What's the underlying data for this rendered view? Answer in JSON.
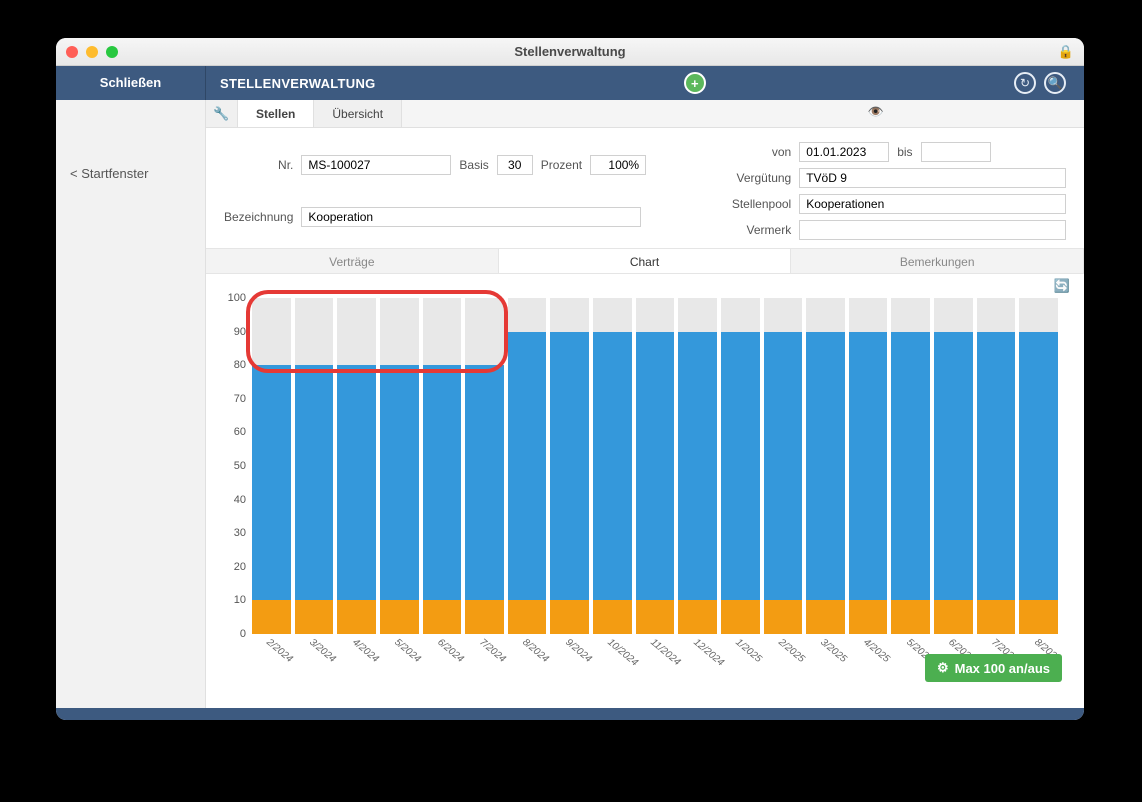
{
  "window": {
    "title": "Stellenverwaltung"
  },
  "topbar": {
    "close": "Schließen",
    "heading": "STELLENVERWALTUNG"
  },
  "sidebar": {
    "start": "< Startfenster"
  },
  "tabs": {
    "stellen": "Stellen",
    "uebersicht": "Übersicht"
  },
  "form": {
    "nr_label": "Nr.",
    "nr": "MS-100027",
    "basis_label": "Basis",
    "basis": "30",
    "prozent_label": "Prozent",
    "prozent": "100%",
    "bez_label": "Bezeichnung",
    "bez": "Kooperation",
    "von_label": "von",
    "von": "01.01.2023",
    "bis_label": "bis",
    "bis": "",
    "verguetung_label": "Vergütung",
    "verguetung": "TVöD 9",
    "pool_label": "Stellenpool",
    "pool": "Kooperationen",
    "vermerk_label": "Vermerk",
    "vermerk": ""
  },
  "subtabs": {
    "vertraege": "Verträge",
    "chart": "Chart",
    "bemerkungen": "Bemerkungen",
    "active": "chart"
  },
  "chart": {
    "type": "stacked-bar",
    "ylim": [
      0,
      100
    ],
    "ytick_step": 10,
    "yticks": [
      0,
      10,
      20,
      30,
      40,
      50,
      60,
      70,
      80,
      90,
      100
    ],
    "label_fontsize": 11,
    "colors": {
      "orange": "#f39c12",
      "blue": "#3498db",
      "background": "#e8e8e8"
    },
    "months": [
      {
        "label": "2/2024",
        "orange": 10,
        "blue": 70,
        "bg": 20
      },
      {
        "label": "3/2024",
        "orange": 10,
        "blue": 70,
        "bg": 20
      },
      {
        "label": "4/2024",
        "orange": 10,
        "blue": 70,
        "bg": 20
      },
      {
        "label": "5/2024",
        "orange": 10,
        "blue": 70,
        "bg": 20
      },
      {
        "label": "6/2024",
        "orange": 10,
        "blue": 70,
        "bg": 20
      },
      {
        "label": "7/2024",
        "orange": 10,
        "blue": 70,
        "bg": 20
      },
      {
        "label": "8/2024",
        "orange": 10,
        "blue": 80,
        "bg": 10
      },
      {
        "label": "9/2024",
        "orange": 10,
        "blue": 80,
        "bg": 10
      },
      {
        "label": "10/2024",
        "orange": 10,
        "blue": 80,
        "bg": 10
      },
      {
        "label": "11/2024",
        "orange": 10,
        "blue": 80,
        "bg": 10
      },
      {
        "label": "12/2024",
        "orange": 10,
        "blue": 80,
        "bg": 10
      },
      {
        "label": "1/2025",
        "orange": 10,
        "blue": 80,
        "bg": 10
      },
      {
        "label": "2/2025",
        "orange": 10,
        "blue": 80,
        "bg": 10
      },
      {
        "label": "3/2025",
        "orange": 10,
        "blue": 80,
        "bg": 10
      },
      {
        "label": "4/2025",
        "orange": 10,
        "blue": 80,
        "bg": 10
      },
      {
        "label": "5/2025",
        "orange": 10,
        "blue": 80,
        "bg": 10
      },
      {
        "label": "6/2025",
        "orange": 10,
        "blue": 80,
        "bg": 10
      },
      {
        "label": "7/2025",
        "orange": 10,
        "blue": 80,
        "bg": 10
      },
      {
        "label": "8/2025",
        "orange": 10,
        "blue": 80,
        "bg": 10
      }
    ],
    "highlight": {
      "from": 0,
      "to": 5,
      "y_from": 80,
      "y_to": 100
    }
  },
  "maxbtn": "Max 100 an/aus"
}
